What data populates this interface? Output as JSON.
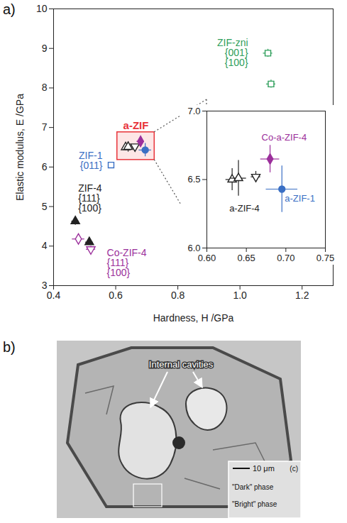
{
  "chart_data": [
    {
      "type": "scatter",
      "panel_label": "a)",
      "x_label": "Hardness, H /GPa",
      "y_label": "Elastic modulus, E /GPa",
      "xlim": [
        0.4,
        1.3
      ],
      "xticks": [
        0.4,
        0.6,
        0.8,
        {
          "value": 1.0,
          "label": "1.0"
        },
        1.2
      ],
      "ylim": [
        3,
        10
      ],
      "yticks": [
        3,
        4,
        5,
        6,
        7,
        8,
        9,
        10
      ],
      "series": [
        {
          "name": "ZIF-zni",
          "color": "#2e9e5b",
          "marker": "square-open",
          "x": [
            1.09,
            1.1
          ],
          "y": [
            8.88,
            8.1
          ],
          "xerr": [
            0.015,
            0.015
          ],
          "yerr": [
            0.1,
            0.1
          ],
          "point_labels": [
            "{001}",
            "{100}"
          ]
        },
        {
          "name": "ZIF-1",
          "color": "#3a6fc4",
          "marker": "square-open",
          "x": [
            0.585
          ],
          "y": [
            6.05
          ],
          "xerr": [
            0.008
          ],
          "yerr": [
            0.04
          ],
          "point_labels": [
            "{011}"
          ]
        },
        {
          "name": "ZIF-4",
          "color": "#222222",
          "marker": "triangle",
          "x": [
            0.47,
            0.515
          ],
          "y": [
            4.63,
            4.1
          ],
          "xerr": [
            0.012,
            0.012
          ],
          "yerr": [
            0.1,
            0.08
          ],
          "point_labels": [
            "{111}",
            "{100}"
          ]
        },
        {
          "name": "Co-ZIF-4",
          "color": "#9b2f9b",
          "marker": [
            "diamond-open",
            "triangle-down-open"
          ],
          "x": [
            0.48,
            0.52
          ],
          "y": [
            4.18,
            3.92
          ],
          "xerr": [
            0.02,
            0.015
          ],
          "yerr": [
            0.12,
            0.08
          ],
          "point_labels": [
            "{111}",
            "{100}"
          ]
        },
        {
          "name": "a-ZIF",
          "color": "#e8333a",
          "colors": [
            "#222222",
            "#222222",
            "#222222",
            "#9b2f9b",
            "#3a6fc4"
          ],
          "marker": [
            "triangle-open",
            "triangle-open",
            "triangle-down-open",
            "diamond",
            "circle"
          ],
          "x": [
            0.632,
            0.64,
            0.662,
            0.68,
            0.695
          ],
          "y": [
            6.5,
            6.51,
            6.52,
            6.65,
            6.43
          ],
          "xerr": [
            0.008,
            0.01,
            0.006,
            0.012,
            0.02
          ],
          "yerr": [
            0.08,
            0.13,
            0.04,
            0.1,
            0.17
          ],
          "highlight": {
            "xlim": [
              0.605,
              0.725
            ],
            "ylim": [
              6.18,
              6.88
            ]
          }
        }
      ]
    },
    {
      "type": "scatter",
      "xlim": [
        0.6,
        0.75
      ],
      "xticks": [
        {
          "value": 0.6,
          "label": "0.60"
        },
        0.65,
        {
          "value": 0.7,
          "label": "0.70"
        },
        0.75
      ],
      "ylim": [
        6.0,
        7.0
      ],
      "yticks": [
        {
          "value": 6.0,
          "label": "6.0"
        },
        6.5,
        {
          "value": 7.0,
          "label": "7.0"
        }
      ],
      "series": [
        {
          "name": "a-ZIF-4",
          "color": "#222222",
          "marker": [
            "triangle-open",
            "triangle-open",
            "triangle-down-open"
          ],
          "x": [
            0.632,
            0.64,
            0.662
          ],
          "y": [
            6.5,
            6.51,
            6.52
          ],
          "xerr": [
            0.008,
            0.01,
            0.006
          ],
          "yerr": [
            0.08,
            0.13,
            0.04
          ]
        },
        {
          "name": "Co-a-ZIF-4",
          "color": "#9b2f9b",
          "marker": "diamond",
          "x": [
            0.68
          ],
          "y": [
            6.65
          ],
          "xerr": [
            0.012
          ],
          "yerr": [
            0.1
          ]
        },
        {
          "name": "a-ZIF-1",
          "color": "#3a6fc4",
          "marker": "circle",
          "x": [
            0.695
          ],
          "y": [
            6.43
          ],
          "xerr": [
            0.02
          ],
          "yerr": [
            0.17
          ]
        }
      ]
    }
  ],
  "image_panel": {
    "panel_label": "b)",
    "annotation": "Internal cavities",
    "scale_bar": "10 μm",
    "phase_labels": [
      "\"Dark\" phase",
      "\"Bright\" phase"
    ],
    "inset_label": "(c)"
  }
}
